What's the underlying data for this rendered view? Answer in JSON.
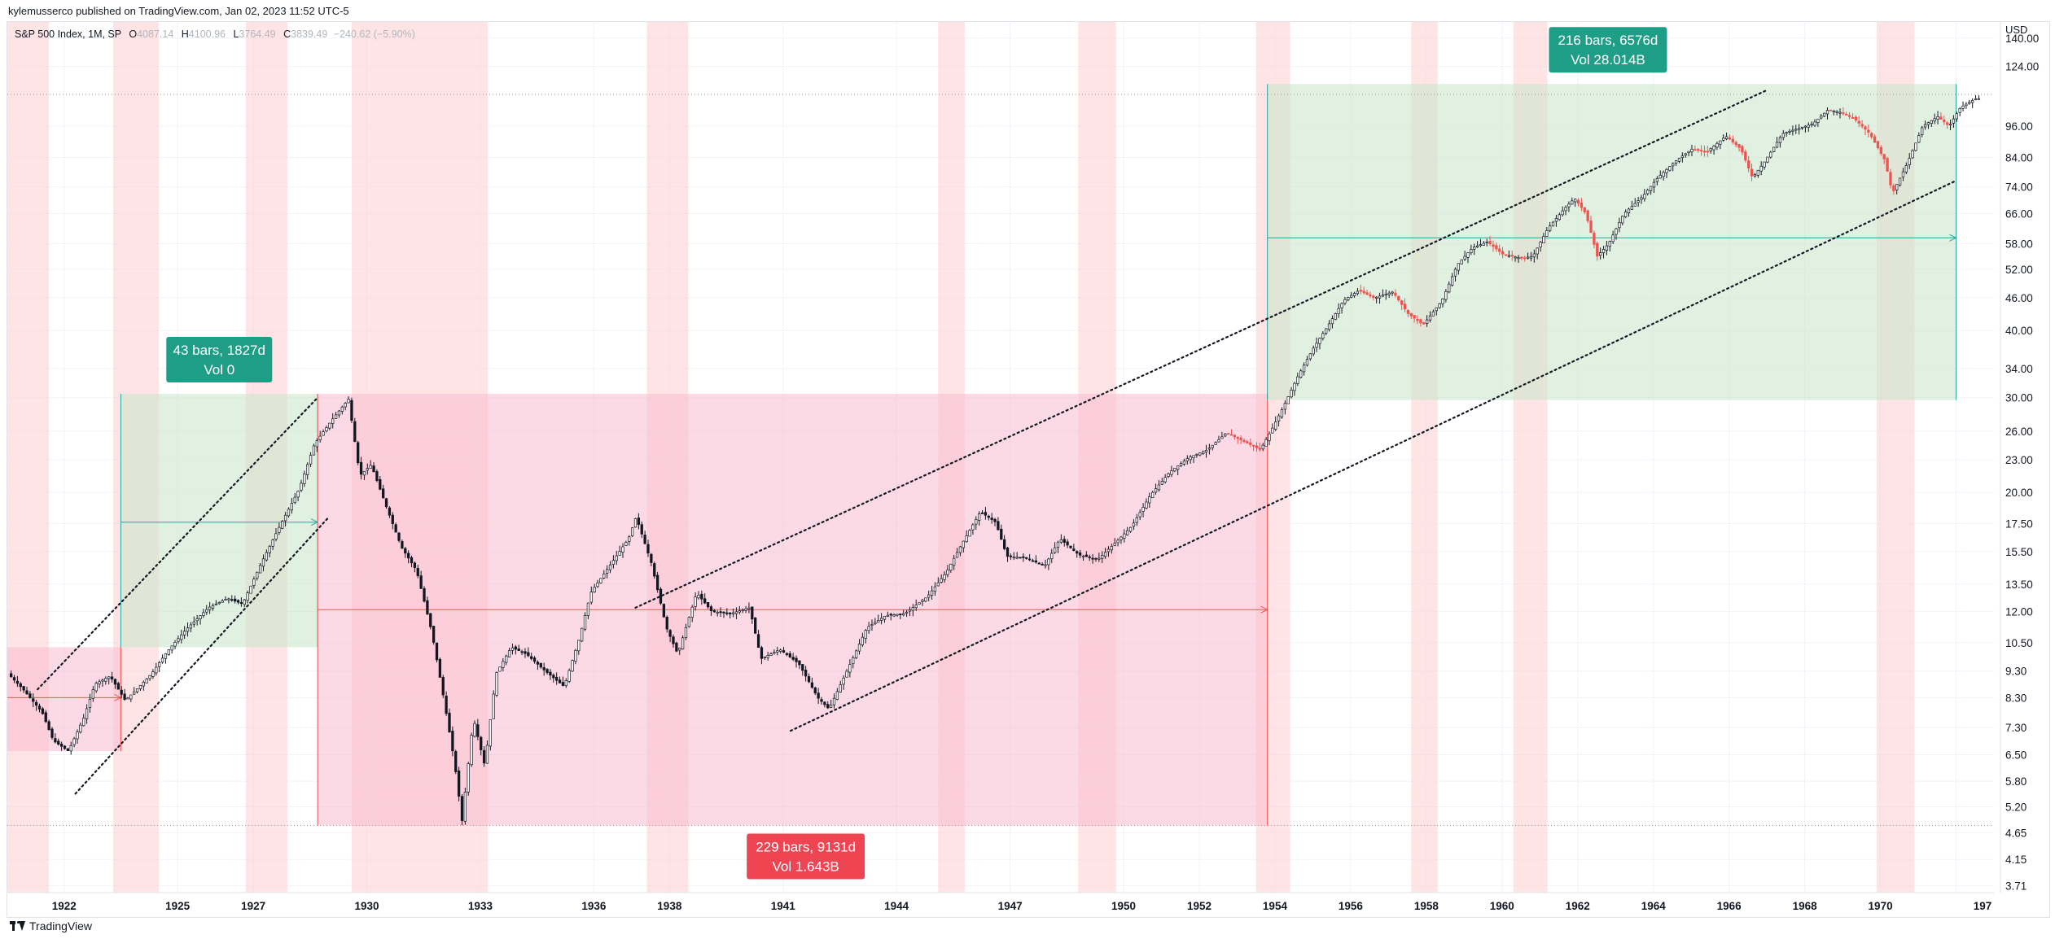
{
  "header": {
    "published": "kylemusserco published on TradingView.com, Jan 02, 2023 11:52 UTC-5"
  },
  "legend": {
    "symbol": "S&P 500 Index, 1M, SP",
    "o_label": "O",
    "o_value": "4087.14",
    "h_label": "H",
    "h_value": "4100.96",
    "l_label": "L",
    "l_value": "3764.49",
    "c_label": "C",
    "c_value": "3839.49",
    "change": "−240.62 (−5.90%)"
  },
  "footer": {
    "brand": "TradingView"
  },
  "colors": {
    "up": "#26a69a",
    "down": "#ef5350",
    "candle_dark": "#131722",
    "recession": "#ffcdd2",
    "green_zone": "#c8e6c9",
    "red_zone": "#f8bbd0",
    "green_label": "#1e9e86",
    "red_label": "#ef4452"
  },
  "chart_data": {
    "type": "candlestick",
    "scale": "log",
    "currency": "USD",
    "y_ticks": [
      "140.00",
      "124.00",
      "96.00",
      "84.00",
      "74.00",
      "66.00",
      "58.00",
      "52.00",
      "46.00",
      "40.00",
      "34.00",
      "30.00",
      "26.00",
      "23.00",
      "20.00",
      "17.50",
      "15.50",
      "13.50",
      "12.00",
      "10.50",
      "9.30",
      "8.30",
      "7.30",
      "6.50",
      "5.80",
      "5.20",
      "4.65",
      "4.15",
      "3.71"
    ],
    "x_ticks": [
      "1922",
      "1925",
      "1927",
      "1930",
      "1933",
      "1936",
      "1938",
      "1941",
      "1944",
      "1947",
      "1950",
      "1952",
      "1954",
      "1956",
      "1958",
      "1960",
      "1962",
      "1964",
      "1966",
      "1968",
      "1970",
      "197"
    ],
    "x_range": [
      1920.5,
      1973.0
    ],
    "y_range": [
      3.6,
      150
    ],
    "recession_bands": [
      [
        1920.5,
        1921.6
      ],
      [
        1923.3,
        1924.5
      ],
      [
        1926.8,
        1927.9
      ],
      [
        1929.6,
        1933.2
      ],
      [
        1937.4,
        1938.5
      ],
      [
        1945.1,
        1945.8
      ],
      [
        1948.8,
        1949.8
      ],
      [
        1953.5,
        1954.4
      ],
      [
        1957.6,
        1958.3
      ],
      [
        1960.3,
        1961.2
      ],
      [
        1969.9,
        1970.9
      ]
    ],
    "measures": [
      {
        "kind": "green",
        "x_start": 1923.5,
        "x_end": 1928.7,
        "y_low": 10.3,
        "y_high": 30.5,
        "mid": 17.6,
        "label1": "43 bars, 1827d",
        "label2": "Vol 0"
      },
      {
        "kind": "red",
        "x_start": 1928.7,
        "x_end": 1953.8,
        "y_low": 4.8,
        "y_high": 30.5,
        "mid": 12.1,
        "label1": "229 bars, 9131d",
        "label2": "Vol 1.643B"
      },
      {
        "kind": "red",
        "x_start": 1920.0,
        "x_end": 1923.5,
        "y_low": 6.6,
        "y_high": 10.3,
        "mid": 8.3,
        "label1": "",
        "label2": ""
      },
      {
        "kind": "green",
        "x_start": 1953.8,
        "x_end": 1972.0,
        "y_low": 29.7,
        "y_high": 115,
        "mid": 59.5,
        "label1": "216 bars, 6576d",
        "label2": "Vol 28.014B"
      }
    ],
    "trend_lines": [
      {
        "x1": 1921.3,
        "y1": 8.6,
        "x2": 1928.7,
        "y2": 30.0
      },
      {
        "x1": 1922.3,
        "y1": 5.5,
        "x2": 1929.0,
        "y2": 18.0
      },
      {
        "x1": 1937.1,
        "y1": 12.2,
        "x2": 1967.0,
        "y2": 112.0
      },
      {
        "x1": 1941.2,
        "y1": 7.2,
        "x2": 1972.0,
        "y2": 76.0
      }
    ],
    "h_dotted": [
      110.0,
      4.8
    ],
    "series_anchors": [
      [
        1920.6,
        9.2
      ],
      [
        1921.0,
        8.6
      ],
      [
        1921.5,
        7.8
      ],
      [
        1921.8,
        6.9
      ],
      [
        1922.2,
        6.6
      ],
      [
        1922.6,
        7.6
      ],
      [
        1922.9,
        8.8
      ],
      [
        1923.3,
        9.1
      ],
      [
        1923.7,
        8.2
      ],
      [
        1924.0,
        8.6
      ],
      [
        1924.4,
        9.2
      ],
      [
        1924.8,
        10.1
      ],
      [
        1925.3,
        11.1
      ],
      [
        1925.9,
        12.2
      ],
      [
        1926.4,
        12.7
      ],
      [
        1926.8,
        12.4
      ],
      [
        1927.3,
        14.8
      ],
      [
        1927.8,
        17.4
      ],
      [
        1928.3,
        20.3
      ],
      [
        1928.7,
        24.6
      ],
      [
        1929.2,
        27.5
      ],
      [
        1929.6,
        29.8
      ],
      [
        1929.9,
        21.5
      ],
      [
        1930.2,
        22.5
      ],
      [
        1930.6,
        18.8
      ],
      [
        1931.0,
        15.8
      ],
      [
        1931.4,
        14.3
      ],
      [
        1931.8,
        11.0
      ],
      [
        1932.1,
        8.4
      ],
      [
        1932.4,
        6.3
      ],
      [
        1932.6,
        4.9
      ],
      [
        1932.9,
        7.6
      ],
      [
        1933.2,
        6.2
      ],
      [
        1933.5,
        9.2
      ],
      [
        1933.9,
        10.3
      ],
      [
        1934.3,
        10.0
      ],
      [
        1934.8,
        9.3
      ],
      [
        1935.3,
        8.7
      ],
      [
        1935.7,
        10.7
      ],
      [
        1936.0,
        13.0
      ],
      [
        1936.5,
        14.6
      ],
      [
        1937.0,
        16.4
      ],
      [
        1937.2,
        18.0
      ],
      [
        1937.6,
        14.8
      ],
      [
        1938.0,
        11.2
      ],
      [
        1938.3,
        10.0
      ],
      [
        1938.8,
        13.0
      ],
      [
        1939.2,
        12.0
      ],
      [
        1939.7,
        11.9
      ],
      [
        1940.2,
        12.2
      ],
      [
        1940.5,
        9.8
      ],
      [
        1941.0,
        10.2
      ],
      [
        1941.5,
        9.6
      ],
      [
        1942.0,
        8.3
      ],
      [
        1942.3,
        7.9
      ],
      [
        1942.8,
        9.4
      ],
      [
        1943.3,
        11.2
      ],
      [
        1943.8,
        11.8
      ],
      [
        1944.3,
        11.9
      ],
      [
        1944.9,
        12.8
      ],
      [
        1945.4,
        14.2
      ],
      [
        1945.8,
        16.0
      ],
      [
        1946.3,
        18.4
      ],
      [
        1946.7,
        17.6
      ],
      [
        1947.0,
        15.2
      ],
      [
        1947.5,
        15.1
      ],
      [
        1948.0,
        14.6
      ],
      [
        1948.4,
        16.4
      ],
      [
        1948.9,
        15.3
      ],
      [
        1949.4,
        15.0
      ],
      [
        1949.9,
        16.2
      ],
      [
        1950.3,
        17.3
      ],
      [
        1950.8,
        19.8
      ],
      [
        1951.3,
        21.8
      ],
      [
        1951.8,
        23.2
      ],
      [
        1952.3,
        24.0
      ],
      [
        1952.8,
        25.8
      ],
      [
        1953.3,
        24.8
      ],
      [
        1953.7,
        24.0
      ],
      [
        1954.0,
        26.2
      ],
      [
        1954.3,
        28.8
      ],
      [
        1954.7,
        33.0
      ],
      [
        1955.1,
        37.1
      ],
      [
        1955.5,
        41.0
      ],
      [
        1955.9,
        45.5
      ],
      [
        1956.3,
        47.5
      ],
      [
        1956.7,
        46.0
      ],
      [
        1957.2,
        47.2
      ],
      [
        1957.6,
        43.0
      ],
      [
        1958.0,
        41.0
      ],
      [
        1958.5,
        45.5
      ],
      [
        1958.9,
        53.0
      ],
      [
        1959.3,
        57.0
      ],
      [
        1959.7,
        58.5
      ],
      [
        1960.1,
        55.5
      ],
      [
        1960.6,
        54.5
      ],
      [
        1960.9,
        55.0
      ],
      [
        1961.3,
        62.0
      ],
      [
        1961.7,
        67.0
      ],
      [
        1962.0,
        70.5
      ],
      [
        1962.3,
        66.0
      ],
      [
        1962.6,
        55.0
      ],
      [
        1962.9,
        58.0
      ],
      [
        1963.3,
        66.0
      ],
      [
        1963.8,
        71.0
      ],
      [
        1964.2,
        77.0
      ],
      [
        1964.7,
        83.0
      ],
      [
        1965.1,
        87.0
      ],
      [
        1965.5,
        86.0
      ],
      [
        1966.0,
        92.0
      ],
      [
        1966.4,
        87.0
      ],
      [
        1966.7,
        77.0
      ],
      [
        1967.0,
        82.0
      ],
      [
        1967.5,
        93.0
      ],
      [
        1967.9,
        95.0
      ],
      [
        1968.3,
        97.0
      ],
      [
        1968.7,
        103.0
      ],
      [
        1969.0,
        102.0
      ],
      [
        1969.4,
        99.0
      ],
      [
        1969.8,
        93.0
      ],
      [
        1970.2,
        83.0
      ],
      [
        1970.4,
        72.0
      ],
      [
        1970.8,
        82.0
      ],
      [
        1971.2,
        96.0
      ],
      [
        1971.6,
        100.0
      ],
      [
        1971.9,
        96.0
      ],
      [
        1972.2,
        104.0
      ],
      [
        1972.6,
        108.0
      ]
    ]
  }
}
